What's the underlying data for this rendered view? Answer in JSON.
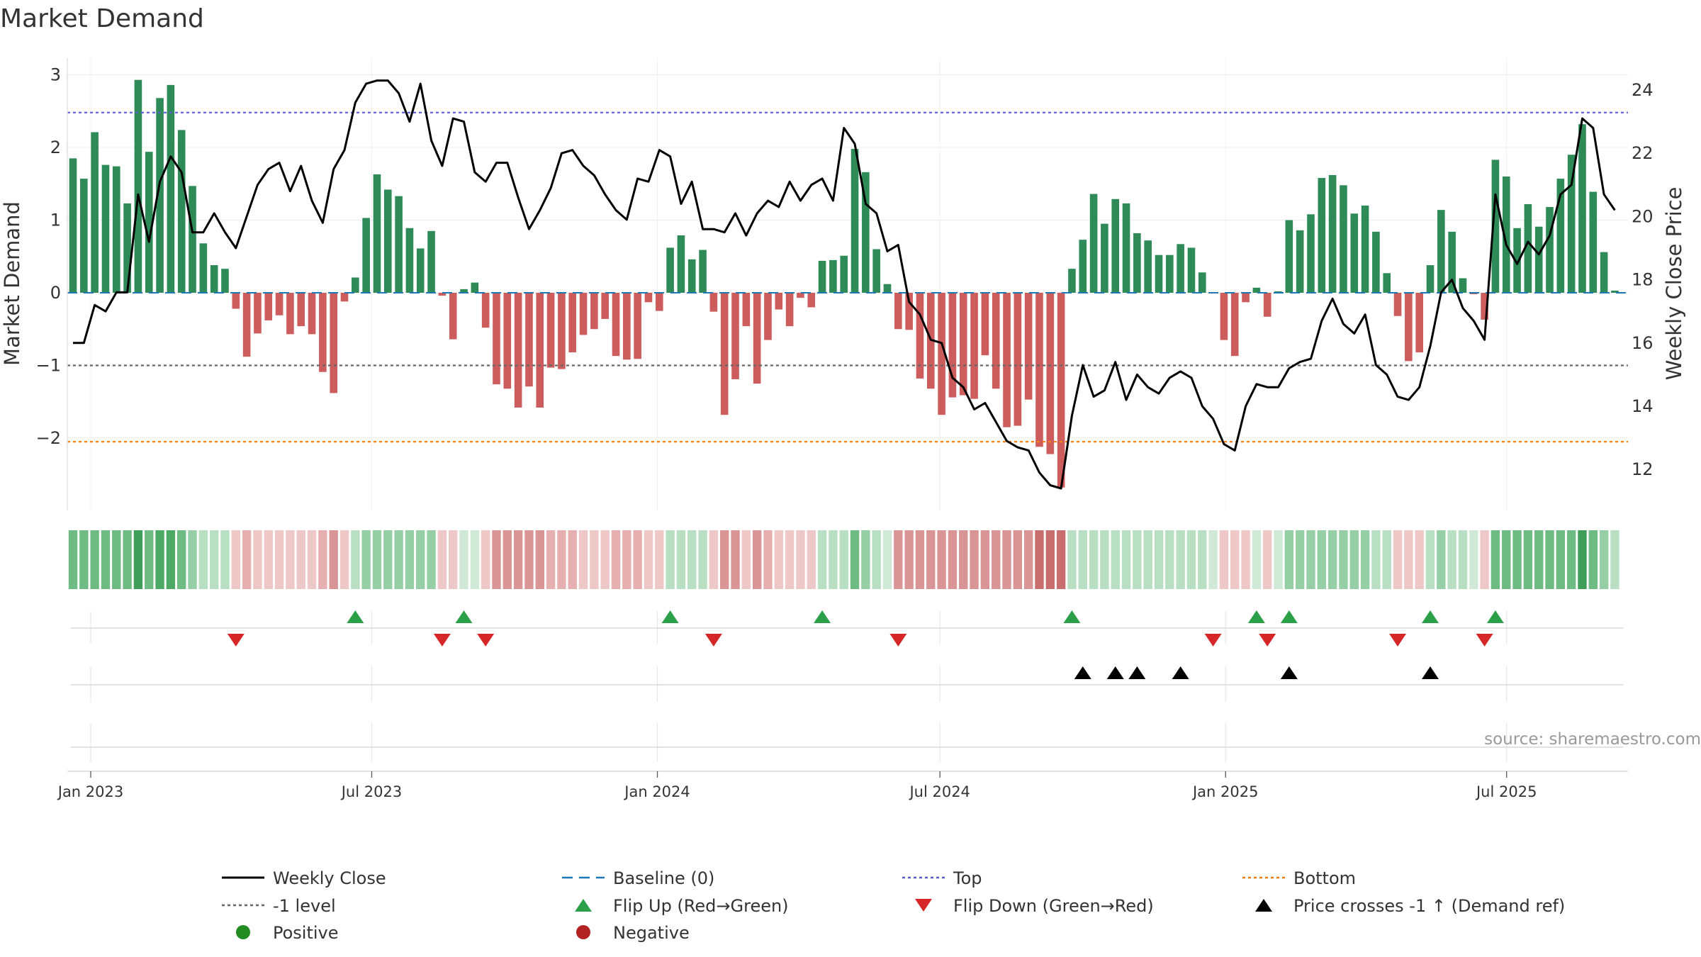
{
  "chart_data": {
    "type": "bar",
    "title": "Market Demand",
    "ylabel": "Market Demand",
    "y2label": "Weekly Close Price",
    "ylim": [
      -2.9,
      3.2
    ],
    "y2lim": [
      11.0,
      24.6
    ],
    "yticks": [
      3,
      2,
      1,
      0,
      -1,
      -2
    ],
    "yticklabels": [
      "3",
      "2",
      "1",
      "0",
      "−1",
      "−2"
    ],
    "y2ticks": [
      24,
      22,
      20,
      18,
      16,
      14,
      12
    ],
    "y2ticklabels": [
      "24",
      "22",
      "20",
      "18",
      "16",
      "14",
      "12"
    ],
    "x_start": "2023-01-01",
    "x_end": "2025-09-14",
    "xticks": [
      "Jan 2023",
      "Jul 2023",
      "Jan 2024",
      "Jul 2024",
      "Jan 2025",
      "Jul 2025"
    ],
    "xtick_dates": [
      "2023-01-01",
      "2023-07-01",
      "2024-01-01",
      "2024-07-01",
      "2025-01-01",
      "2025-07-01"
    ],
    "reference_lines": {
      "baseline": 0,
      "top": 2.48,
      "bottom": -2.05,
      "minus_one": -1
    },
    "demand": [
      1.85,
      1.57,
      2.21,
      1.76,
      1.74,
      1.23,
      2.93,
      1.94,
      2.68,
      2.86,
      2.24,
      1.47,
      0.68,
      0.38,
      0.33,
      -0.22,
      -0.88,
      -0.56,
      -0.38,
      -0.31,
      -0.57,
      -0.46,
      -0.57,
      -1.09,
      -1.38,
      -0.12,
      0.21,
      1.03,
      1.63,
      1.42,
      1.33,
      0.89,
      0.61,
      0.85,
      -0.04,
      -0.64,
      0.05,
      0.14,
      -0.48,
      -1.26,
      -1.32,
      -1.58,
      -1.29,
      -1.58,
      -1.03,
      -1.05,
      -0.82,
      -0.58,
      -0.5,
      -0.36,
      -0.87,
      -0.92,
      -0.91,
      -0.13,
      -0.25,
      0.62,
      0.79,
      0.46,
      0.59,
      -0.26,
      -1.68,
      -1.19,
      -0.46,
      -1.25,
      -0.65,
      -0.23,
      -0.46,
      -0.07,
      -0.2,
      0.44,
      0.45,
      0.51,
      1.98,
      1.66,
      0.6,
      0.12,
      -0.5,
      -0.51,
      -1.18,
      -1.32,
      -1.68,
      -1.44,
      -1.41,
      -1.46,
      -0.86,
      -1.32,
      -1.85,
      -1.83,
      -1.47,
      -2.12,
      -2.22,
      -2.68,
      0.33,
      0.73,
      1.36,
      0.95,
      1.29,
      1.23,
      0.82,
      0.72,
      0.52,
      0.52,
      0.67,
      0.62,
      0.28,
      0.01,
      -0.65,
      -0.87,
      -0.13,
      0.07,
      -0.33,
      0.02,
      1.0,
      0.86,
      1.08,
      1.58,
      1.62,
      1.48,
      1.09,
      1.2,
      0.84,
      0.27,
      -0.32,
      -0.94,
      -0.82,
      0.38,
      1.14,
      0.84,
      0.2,
      -0.02,
      -0.37,
      1.83,
      1.6,
      0.89,
      1.22,
      0.91,
      1.18,
      1.57,
      1.9,
      2.32,
      1.39,
      0.56,
      0.03
    ],
    "weekly_close": [
      16.0,
      16.0,
      17.2,
      17.0,
      17.6,
      17.6,
      20.7,
      19.2,
      21.1,
      21.9,
      21.4,
      19.5,
      19.5,
      20.1,
      19.5,
      19.0,
      20.0,
      21.0,
      21.5,
      21.7,
      20.8,
      21.6,
      20.5,
      19.8,
      21.5,
      22.1,
      23.6,
      24.2,
      24.3,
      24.3,
      23.9,
      23.0,
      24.2,
      22.4,
      21.6,
      23.1,
      23.0,
      21.4,
      21.1,
      21.7,
      21.7,
      20.6,
      19.6,
      20.2,
      20.9,
      22.0,
      22.1,
      21.6,
      21.3,
      20.7,
      20.2,
      19.9,
      21.2,
      21.1,
      22.1,
      21.9,
      20.4,
      21.1,
      19.6,
      19.6,
      19.5,
      20.1,
      19.4,
      20.1,
      20.5,
      20.3,
      21.1,
      20.5,
      21.0,
      21.2,
      20.5,
      22.8,
      22.3,
      20.4,
      20.1,
      18.9,
      19.1,
      17.3,
      16.9,
      16.1,
      16.0,
      14.9,
      14.6,
      13.9,
      14.1,
      13.5,
      12.9,
      12.7,
      12.6,
      11.9,
      11.5,
      11.4,
      13.7,
      15.3,
      14.3,
      14.5,
      15.4,
      14.2,
      15.0,
      14.6,
      14.4,
      14.9,
      15.1,
      14.9,
      14.0,
      13.6,
      12.8,
      12.6,
      14.0,
      14.7,
      14.6,
      14.6,
      15.2,
      15.4,
      15.5,
      16.7,
      17.4,
      16.6,
      16.3,
      16.9,
      15.3,
      15.0,
      14.3,
      14.2,
      14.6,
      15.9,
      17.6,
      18.0,
      17.1,
      16.7,
      16.1,
      20.7,
      19.1,
      18.5,
      19.2,
      18.8,
      19.4,
      20.7,
      21.0,
      23.1,
      22.8,
      20.7,
      20.2
    ],
    "flip_up_weeks": [
      26,
      36,
      55,
      69,
      92,
      109,
      112,
      125,
      131
    ],
    "flip_down_weeks": [
      15,
      34,
      38,
      59,
      76,
      105,
      110,
      122,
      130
    ],
    "price_cross_weeks": [
      93,
      96,
      98,
      102,
      112,
      125
    ],
    "heat_row_colors": [
      "#6fbb84",
      "#6fbb84",
      "#6fbb84",
      "#6fbb84",
      "#6fbb84",
      "#6fbb84",
      "#3f9e5a",
      "#6fbb84",
      "#4caa64",
      "#4caa64",
      "#6fbb84",
      "#96cfa5",
      "#b9dfc3",
      "#b9dfc3",
      "#b9dfc3",
      "#eec7c7",
      "#e6b0b0",
      "#eec7c7",
      "#eec7c7",
      "#eec7c7",
      "#eec7c7",
      "#eec7c7",
      "#eec7c7",
      "#e6b0b0",
      "#d99595",
      "#eec7c7",
      "#b9dfc3",
      "#96cfa5",
      "#96cfa5",
      "#96cfa5",
      "#96cfa5",
      "#96cfa5",
      "#96cfa5",
      "#96cfa5",
      "#eec7c7",
      "#eec7c7",
      "#cfe9d6",
      "#cfe9d6",
      "#eec7c7",
      "#d99595",
      "#d99595",
      "#d99595",
      "#d99595",
      "#d99595",
      "#e6b0b0",
      "#e6b0b0",
      "#e6b0b0",
      "#eec7c7",
      "#eec7c7",
      "#eec7c7",
      "#e6b0b0",
      "#e6b0b0",
      "#e6b0b0",
      "#eec7c7",
      "#eec7c7",
      "#b9dfc3",
      "#b9dfc3",
      "#b9dfc3",
      "#b9dfc3",
      "#eec7c7",
      "#d99595",
      "#d99595",
      "#eec7c7",
      "#d99595",
      "#e6b0b0",
      "#eec7c7",
      "#eec7c7",
      "#eec7c7",
      "#eec7c7",
      "#b9dfc3",
      "#b9dfc3",
      "#b9dfc3",
      "#6fbb84",
      "#96cfa5",
      "#b9dfc3",
      "#cfe9d6",
      "#d99595",
      "#d99595",
      "#d99595",
      "#d99595",
      "#d99595",
      "#d99595",
      "#d99595",
      "#d99595",
      "#d99595",
      "#d99595",
      "#d99595",
      "#d99595",
      "#d99595",
      "#c96e6e",
      "#c96e6e",
      "#c96e6e",
      "#b9dfc3",
      "#b9dfc3",
      "#b9dfc3",
      "#b9dfc3",
      "#b9dfc3",
      "#b9dfc3",
      "#b9dfc3",
      "#b9dfc3",
      "#b9dfc3",
      "#b9dfc3",
      "#b9dfc3",
      "#b9dfc3",
      "#b9dfc3",
      "#cfe9d6",
      "#eec7c7",
      "#eec7c7",
      "#eec7c7",
      "#cfe9d6",
      "#eec7c7",
      "#cfe9d6",
      "#96cfa5",
      "#96cfa5",
      "#96cfa5",
      "#96cfa5",
      "#96cfa5",
      "#96cfa5",
      "#96cfa5",
      "#96cfa5",
      "#b9dfc3",
      "#b9dfc3",
      "#eec7c7",
      "#eec7c7",
      "#eec7c7",
      "#b9dfc3",
      "#96cfa5",
      "#b9dfc3",
      "#b9dfc3",
      "#cfe9d6",
      "#eec7c7",
      "#6fbb84",
      "#6fbb84",
      "#6fbb84",
      "#6fbb84",
      "#6fbb84",
      "#6fbb84",
      "#6fbb84",
      "#6fbb84",
      "#3f9e5a",
      "#6fbb84",
      "#96cfa5",
      "#b9dfc3"
    ],
    "colors": {
      "positive_bar": "#2e8b57",
      "negative_bar": "#cd5c5c",
      "weekly_close": "#000000",
      "baseline": "#1f77b4",
      "top": "#5b5bd6",
      "bottom": "#ff7f0e",
      "minus_one": "#666666",
      "flip_up": "#2ca048",
      "flip_down": "#d62728",
      "price_cross": "#000000",
      "positive_dot": "#228b22",
      "negative_dot": "#b22222"
    },
    "legend": [
      {
        "key": "weekly-close",
        "label": "Weekly Close",
        "kind": "solid"
      },
      {
        "key": "baseline",
        "label": "Baseline (0)",
        "kind": "dash"
      },
      {
        "key": "top",
        "label": "Top",
        "kind": "dot"
      },
      {
        "key": "bottom",
        "label": "Bottom",
        "kind": "dot"
      },
      {
        "key": "minus-one",
        "label": "-1 level",
        "kind": "dot"
      },
      {
        "key": "flip-up",
        "label": "Flip Up (Red→Green)",
        "kind": "tri-up"
      },
      {
        "key": "flip-down",
        "label": "Flip Down (Green→Red)",
        "kind": "tri-down"
      },
      {
        "key": "price-cross",
        "label": "Price crosses -1 ↑ (Demand ref)",
        "kind": "tri-up"
      },
      {
        "key": "positive",
        "label": "Positive",
        "kind": "circle"
      },
      {
        "key": "negative",
        "label": "Negative",
        "kind": "circle"
      }
    ],
    "source": "source: sharemaestro.com"
  }
}
